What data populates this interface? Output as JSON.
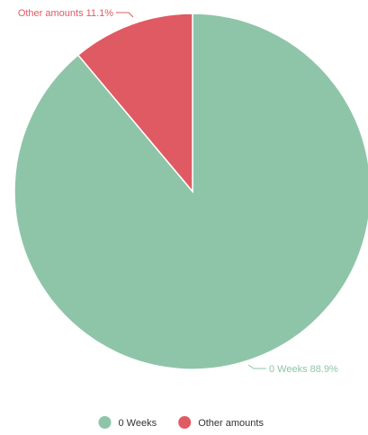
{
  "chart_data": {
    "type": "pie",
    "title": "",
    "slices": [
      {
        "name": "0 Weeks",
        "value": 88.9,
        "color": "#8ec5a8",
        "label": "0 Weeks 88.9%"
      },
      {
        "name": "Other amounts",
        "value": 11.1,
        "color": "#e05a63",
        "label": "Other amounts 11.1%"
      }
    ],
    "legend": {
      "position": "bottom",
      "items": [
        "0 Weeks",
        "Other amounts"
      ]
    }
  }
}
